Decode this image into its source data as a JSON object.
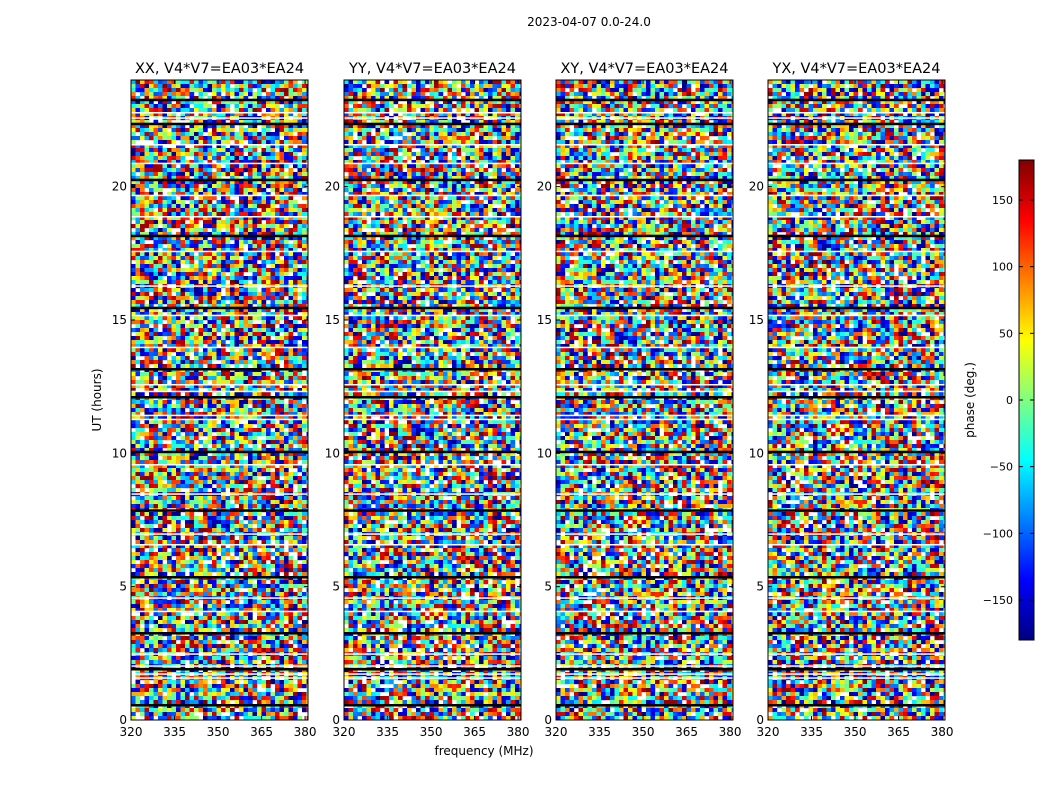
{
  "figure_title": "2023-04-07 0.0-24.0",
  "chart_data": {
    "type": "heatmap",
    "title": "2023-04-07 0.0-24.0",
    "xlabel": "frequency (MHz)",
    "ylabel": "UT (hours)",
    "xlim": [
      320,
      381
    ],
    "ylim": [
      0,
      24
    ],
    "xticks": [
      "320",
      "335",
      "350",
      "365",
      "380"
    ],
    "yticks": [
      "0",
      "5",
      "10",
      "15",
      "20"
    ],
    "panels": [
      {
        "title": "XX, V4*V7=EA03*EA24",
        "polarization": "XX"
      },
      {
        "title": "YY, V4*V7=EA03*EA24",
        "polarization": "YY"
      },
      {
        "title": "XY, V4*V7=EA03*EA24",
        "polarization": "XY"
      },
      {
        "title": "YX, V4*V7=EA03*EA24",
        "polarization": "YX"
      }
    ],
    "colorbar": {
      "label": "phase (deg.)",
      "range": [
        -180,
        180
      ],
      "ticks": [
        "−150",
        "−100",
        "−50",
        "0",
        "50",
        "100",
        "150"
      ],
      "tick_values": [
        -150,
        -100,
        -50,
        0,
        50,
        100,
        150
      ],
      "colormap": "jet"
    },
    "flagged_rows_ut": [
      0.6,
      1.6,
      1.75,
      1.95,
      2.05,
      2.5,
      3.3,
      4.1,
      4.6,
      5.4,
      6.6,
      7.0,
      7.9,
      8.5,
      9.6,
      10.1,
      11.3,
      11.45,
      12.15,
      12.35,
      12.6,
      13.2,
      14.0,
      15.2,
      15.5,
      16.3,
      17.6,
      18.2,
      18.9,
      19.7,
      20.3,
      20.9,
      21.6,
      22.4,
      22.6,
      22.8,
      23.3
    ]
  }
}
